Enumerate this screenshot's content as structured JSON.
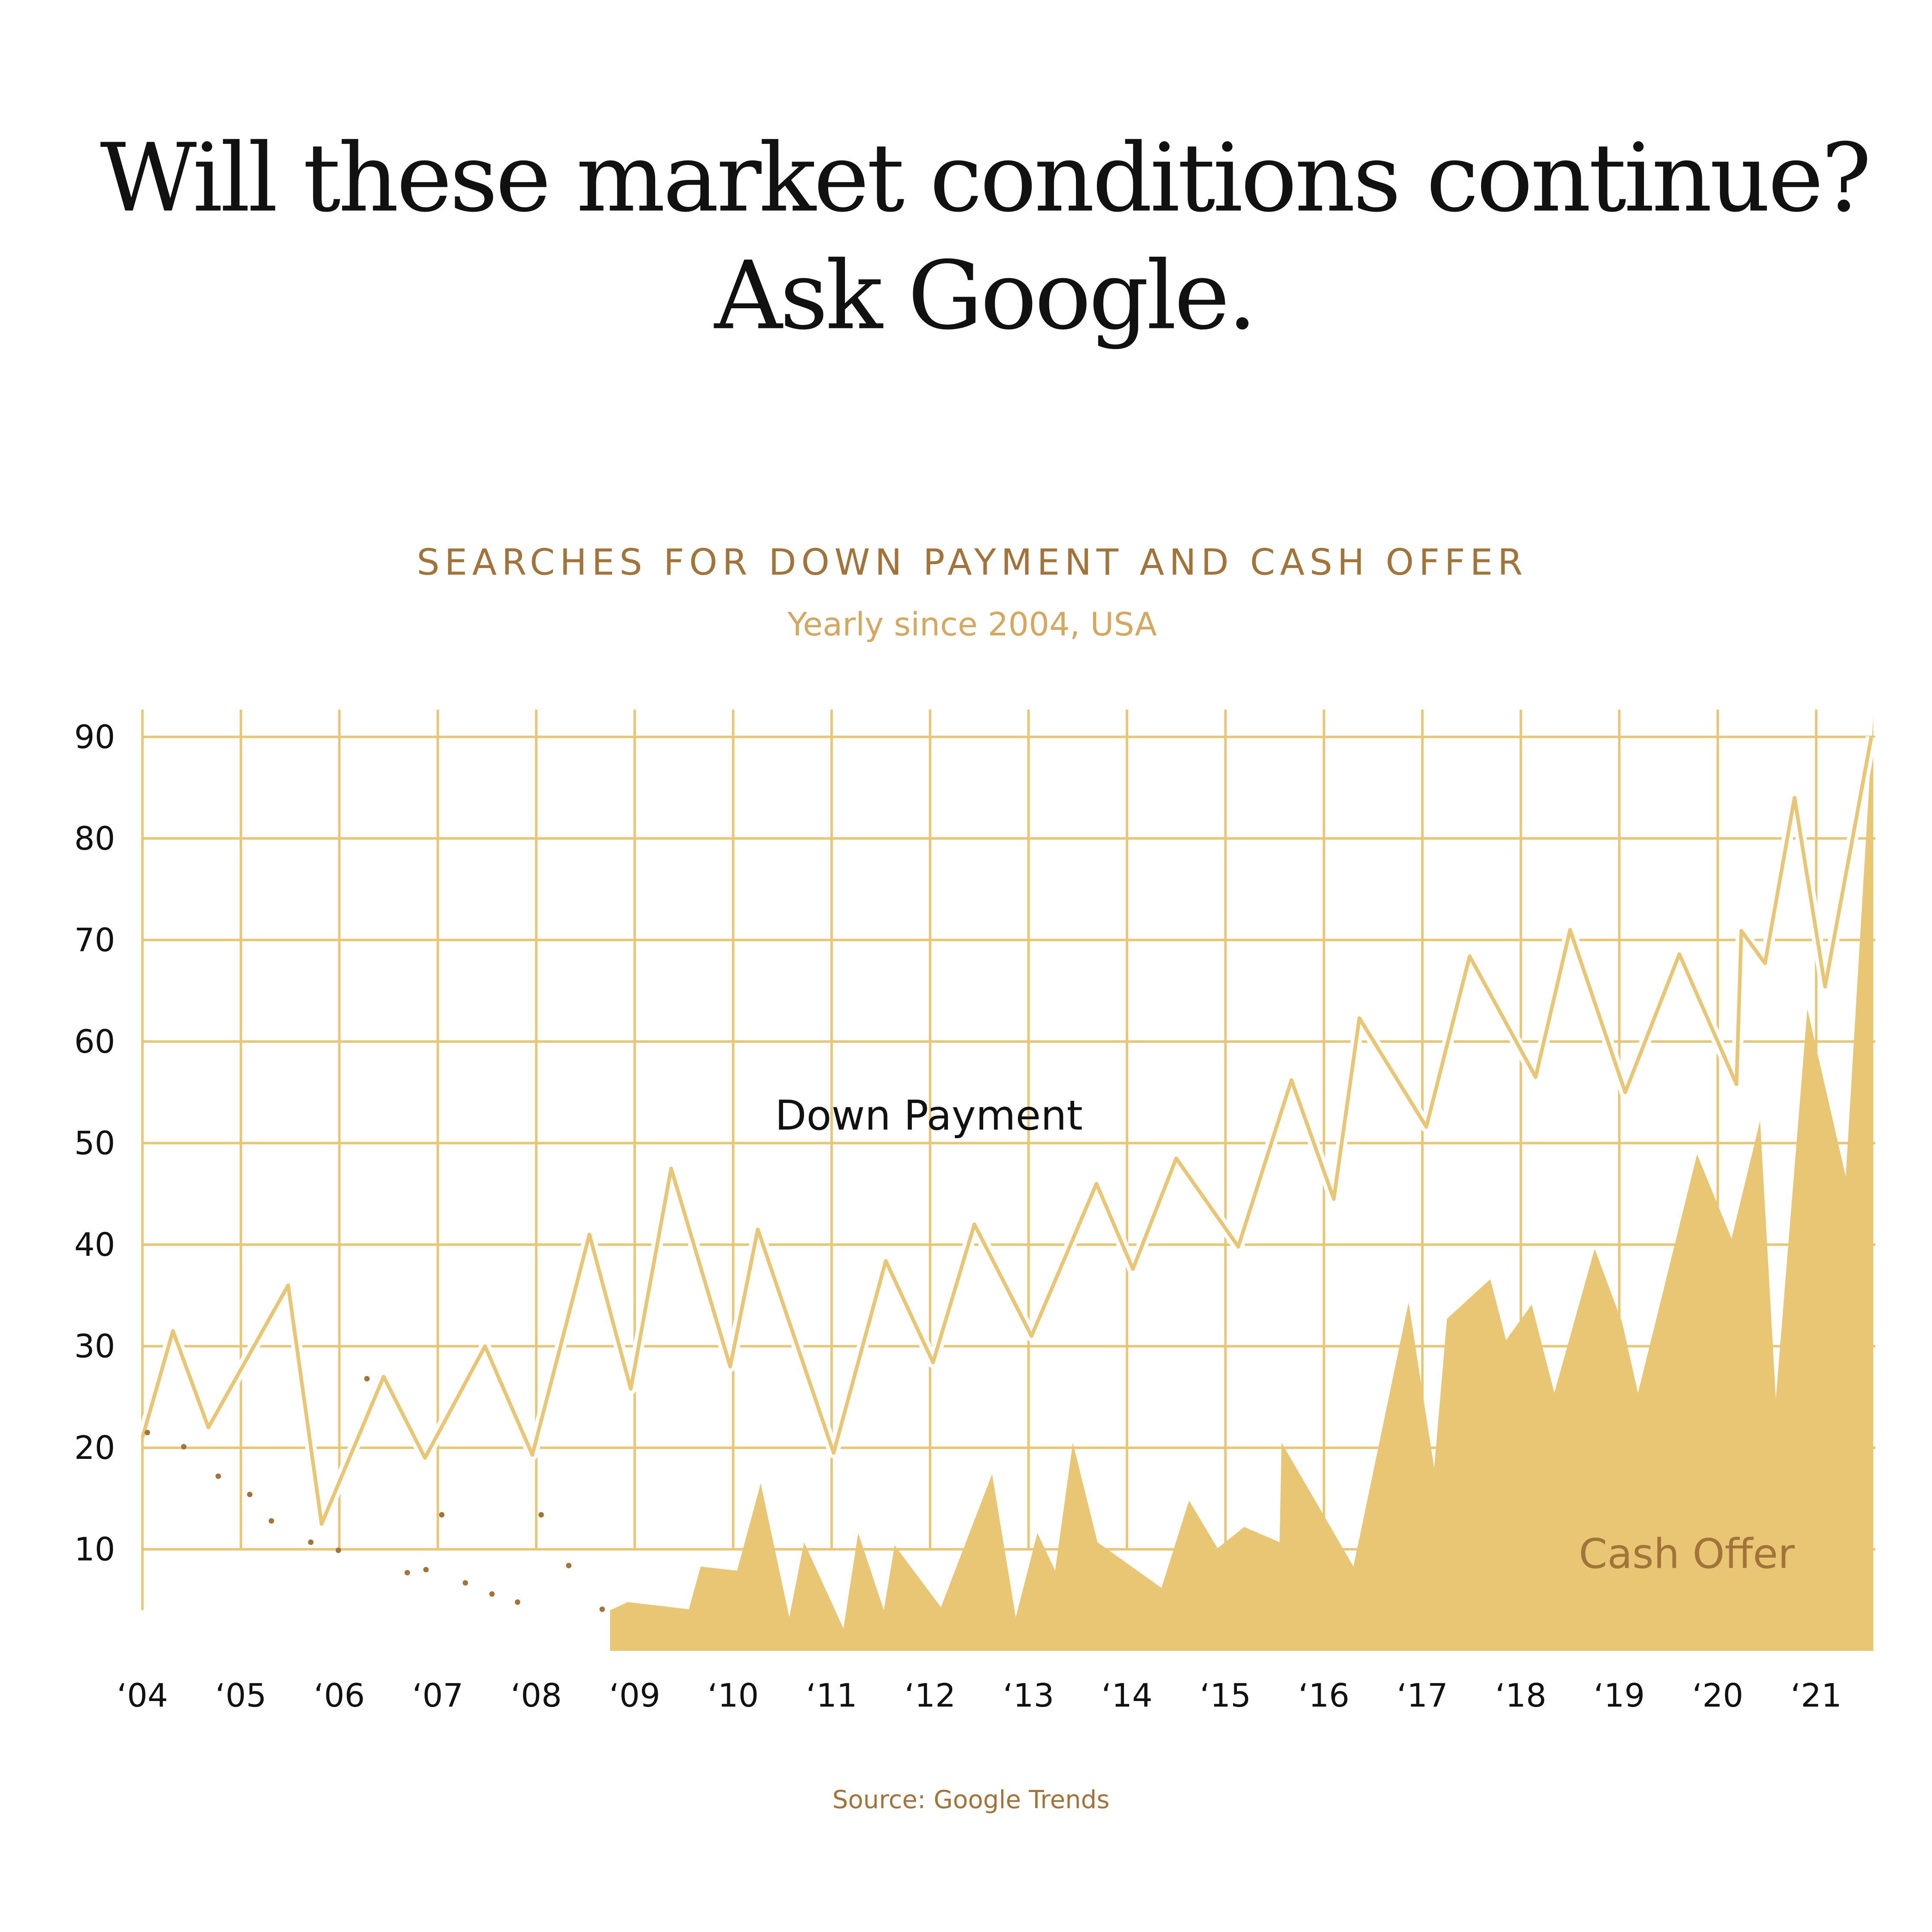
{
  "title_lines": [
    "Will these market conditions continue?",
    "Ask Google."
  ],
  "colors": {
    "line": "#e8c674",
    "area": "#e8c674",
    "dots": "#a3743a",
    "grid": "#e8c674",
    "title": "#111111",
    "subtitle": "#a3743a",
    "subtitle2": "#d4a85e"
  },
  "source": "Source:  Google Trends",
  "chart_data": {
    "type": "line",
    "title": "SEARCHES FOR DOWN PAYMENT AND CASH OFFER",
    "subtitle": "Yearly since 2004, USA",
    "xlabel": "",
    "ylabel": "",
    "xlim": [
      2004,
      2021.6
    ],
    "ylim": [
      0,
      90
    ],
    "grid": true,
    "x_tick_labels": [
      "‘04",
      "‘05",
      "‘06",
      "‘07",
      "‘08",
      "‘09",
      "‘10",
      "‘11",
      "‘12",
      "‘13",
      "‘14",
      "‘15",
      "‘16",
      "‘17",
      "‘18",
      "‘19",
      "‘20",
      "‘21"
    ],
    "x_tick_values": [
      2004,
      2005,
      2006,
      2007,
      2008,
      2009,
      2010,
      2011,
      2012,
      2013,
      2014,
      2015,
      2016,
      2017,
      2018,
      2019,
      2020,
      2021
    ],
    "y_ticks": [
      10,
      20,
      30,
      40,
      50,
      60,
      70,
      80,
      90
    ],
    "series": [
      {
        "name": "Down Payment",
        "style": "line",
        "x": [
          2004.0,
          2004.31,
          2004.67,
          2005.48,
          2005.82,
          2006.45,
          2006.87,
          2007.48,
          2007.96,
          2008.54,
          2008.96,
          2009.37,
          2009.97,
          2010.25,
          2011.02,
          2011.55,
          2012.03,
          2012.45,
          2013.03,
          2013.69,
          2014.06,
          2014.5,
          2015.13,
          2015.67,
          2016.1,
          2016.36,
          2017.04,
          2017.48,
          2018.15,
          2018.5,
          2019.06,
          2019.61,
          2020.19,
          2020.24,
          2020.48,
          2020.78,
          2021.09,
          2021.56
        ],
        "y": [
          21,
          31.5,
          22,
          36,
          12.5,
          27,
          19,
          30,
          19.3,
          41,
          25.8,
          47.5,
          28,
          41.5,
          19.5,
          38.4,
          28.4,
          42,
          31,
          46,
          37.6,
          48.5,
          39.8,
          56.2,
          44.5,
          62.3,
          51.6,
          68.4,
          56.5,
          71,
          55,
          68.6,
          55.8,
          70.9,
          67.7,
          84,
          65.4,
          90
        ]
      },
      {
        "name": "Cash Offer",
        "style": "area",
        "x": [
          2008.75,
          2008.93,
          2009.55,
          2009.67,
          2010.04,
          2010.28,
          2010.57,
          2010.72,
          2011.12,
          2011.27,
          2011.53,
          2011.64,
          2012.11,
          2012.63,
          2012.87,
          2013.09,
          2013.27,
          2013.45,
          2013.7,
          2014.35,
          2014.63,
          2014.92,
          2015.19,
          2015.55,
          2015.57,
          2016.3,
          2016.86,
          2017.12,
          2017.25,
          2017.69,
          2017.85,
          2018.11,
          2018.34,
          2018.75,
          2019.03,
          2019.19,
          2019.79,
          2020.14,
          2020.43,
          2020.59,
          2020.91,
          2021.3,
          2021.58
        ],
        "y": [
          4,
          4.8,
          4.1,
          8.3,
          7.9,
          16.5,
          3.3,
          10.7,
          2.2,
          11.6,
          4,
          10.4,
          4.3,
          17.4,
          3.3,
          11.6,
          7.9,
          20.5,
          10.7,
          6.2,
          14.8,
          10.1,
          12.2,
          10.7,
          20.5,
          8.3,
          34.3,
          18,
          32.7,
          36.6,
          30.6,
          34.1,
          25.4,
          39.6,
          32.3,
          25.4,
          48.9,
          40.6,
          52.2,
          24.8,
          63.2,
          46.7,
          92
        ]
      },
      {
        "name": "",
        "style": "dots",
        "x": [
          2004.05,
          2004.42,
          2004.77,
          2005.09,
          2005.31,
          2005.71,
          2005.99,
          2006.28,
          2006.69,
          2006.88,
          2007.04,
          2007.28,
          2007.55,
          2007.81,
          2008.05,
          2008.33,
          2008.67
        ],
        "y": [
          21.5,
          20.1,
          17.2,
          15.4,
          12.8,
          10.7,
          9.9,
          26.8,
          7.7,
          8,
          13.4,
          6.7,
          5.6,
          4.8,
          13.4,
          8.4,
          4.1
        ]
      }
    ],
    "annotations": [
      {
        "text": "Down Payment",
        "series": "Down Payment"
      },
      {
        "text": "Cash Offer",
        "series": "Cash Offer"
      }
    ]
  }
}
